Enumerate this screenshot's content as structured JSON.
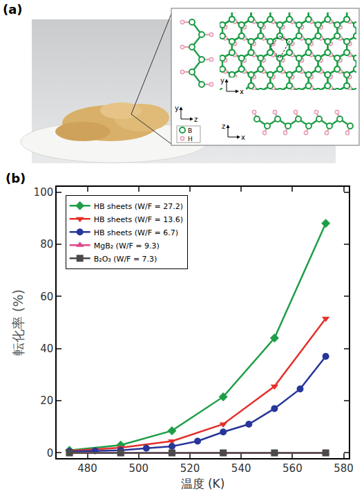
{
  "panel_a": {
    "label": "(a)",
    "legend": [
      "B",
      "H"
    ],
    "axis_labels": [
      [
        "y",
        "z"
      ],
      [
        "y",
        "x"
      ],
      [
        "z",
        "x"
      ]
    ]
  },
  "chart_data": {
    "type": "line",
    "annotations": [
      "(b)"
    ],
    "x_label": "温度 (K)",
    "y_label": "転化率 (%)",
    "xlim": [
      468,
      582
    ],
    "xticks": [
      480,
      500,
      520,
      540,
      560,
      580
    ],
    "ylim": [
      -2,
      102
    ],
    "yticks": [
      0,
      20,
      40,
      60,
      80,
      100
    ],
    "grid": false,
    "legend": "upper left",
    "series": [
      {
        "name": "HB sheets (W/F = 27.2)",
        "color": "#1f9e48",
        "marker": "diamond",
        "x": [
          473,
          493,
          513,
          533,
          553,
          573
        ],
        "values": [
          1,
          3,
          8.5,
          21.5,
          44,
          88
        ]
      },
      {
        "name": "HB sheets (W/F = 13.6)",
        "color": "#e3302b",
        "marker": "triangle-down",
        "x": [
          473,
          493,
          513,
          533,
          553,
          573
        ],
        "values": [
          0.8,
          2,
          4.5,
          11,
          25.5,
          51.5
        ]
      },
      {
        "name": "HB sheets (W/F = 6.7)",
        "color": "#27369a",
        "marker": "circle",
        "x": [
          473,
          483,
          493,
          503,
          513,
          523,
          533,
          543,
          553,
          563,
          573
        ],
        "values": [
          0.5,
          0.8,
          1,
          1.8,
          2.5,
          4.5,
          8,
          11,
          17,
          24.5,
          37
        ]
      },
      {
        "name": "MgB₂ (W/F = 9.3)",
        "color": "#e0458a",
        "marker": "triangle-up",
        "x": [
          473,
          493,
          513,
          533,
          553,
          573
        ],
        "values": [
          0,
          0,
          0,
          0,
          0,
          0
        ]
      },
      {
        "name": "B₂O₃ (W/F = 7.3)",
        "color": "#4a4a4a",
        "marker": "square",
        "x": [
          473,
          493,
          513,
          533,
          553,
          573
        ],
        "values": [
          0,
          0,
          0,
          0,
          0,
          0
        ]
      }
    ]
  }
}
